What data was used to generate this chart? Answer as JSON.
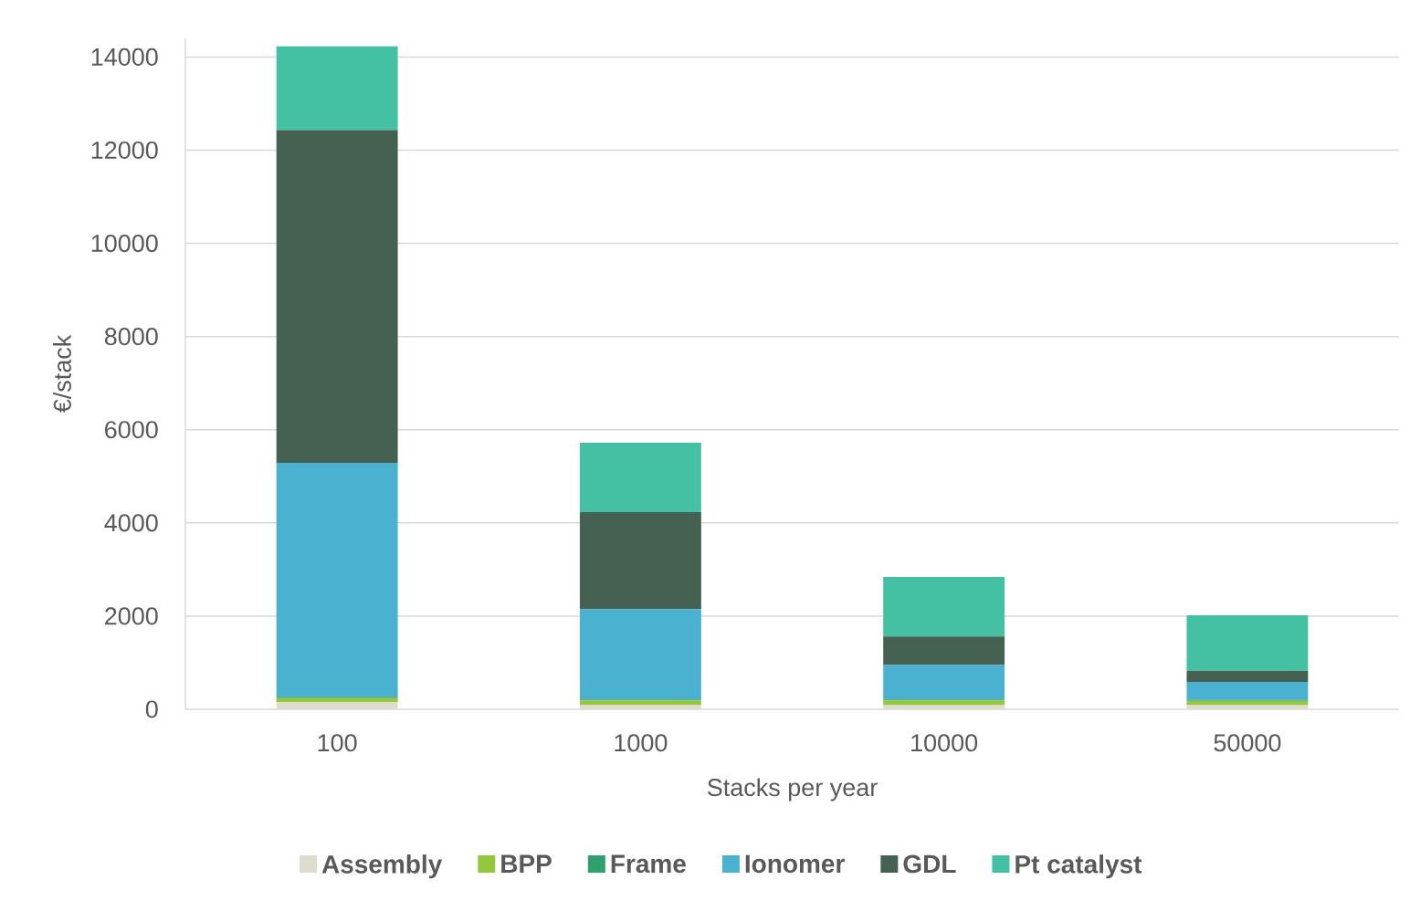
{
  "chart_data": {
    "type": "bar",
    "stacked": true,
    "xlabel": "Stacks per year",
    "ylabel": "€/stack",
    "categories": [
      "100",
      "1000",
      "10000",
      "50000"
    ],
    "series": [
      {
        "name": "Assembly",
        "color": "#dfdccd",
        "values": [
          150,
          100,
          90,
          90
        ]
      },
      {
        "name": "BPP",
        "color": "#94c83c",
        "values": [
          90,
          90,
          100,
          90
        ]
      },
      {
        "name": "Frame",
        "color": "#30a06c",
        "values": [
          30,
          20,
          20,
          20
        ]
      },
      {
        "name": "Ionomer",
        "color": "#4bb1d1",
        "values": [
          5020,
          1940,
          740,
          390
        ]
      },
      {
        "name": "GDL",
        "color": "#446151",
        "values": [
          7140,
          2080,
          610,
          240
        ]
      },
      {
        "name": "Pt catalyst",
        "color": "#44c1a2",
        "values": [
          1800,
          1490,
          1280,
          1190
        ]
      }
    ],
    "ylim": [
      0,
      14400
    ],
    "yticks": [
      0,
      2000,
      4000,
      6000,
      8000,
      10000,
      12000,
      14000
    ],
    "grid": "y",
    "legend": "bottom"
  }
}
